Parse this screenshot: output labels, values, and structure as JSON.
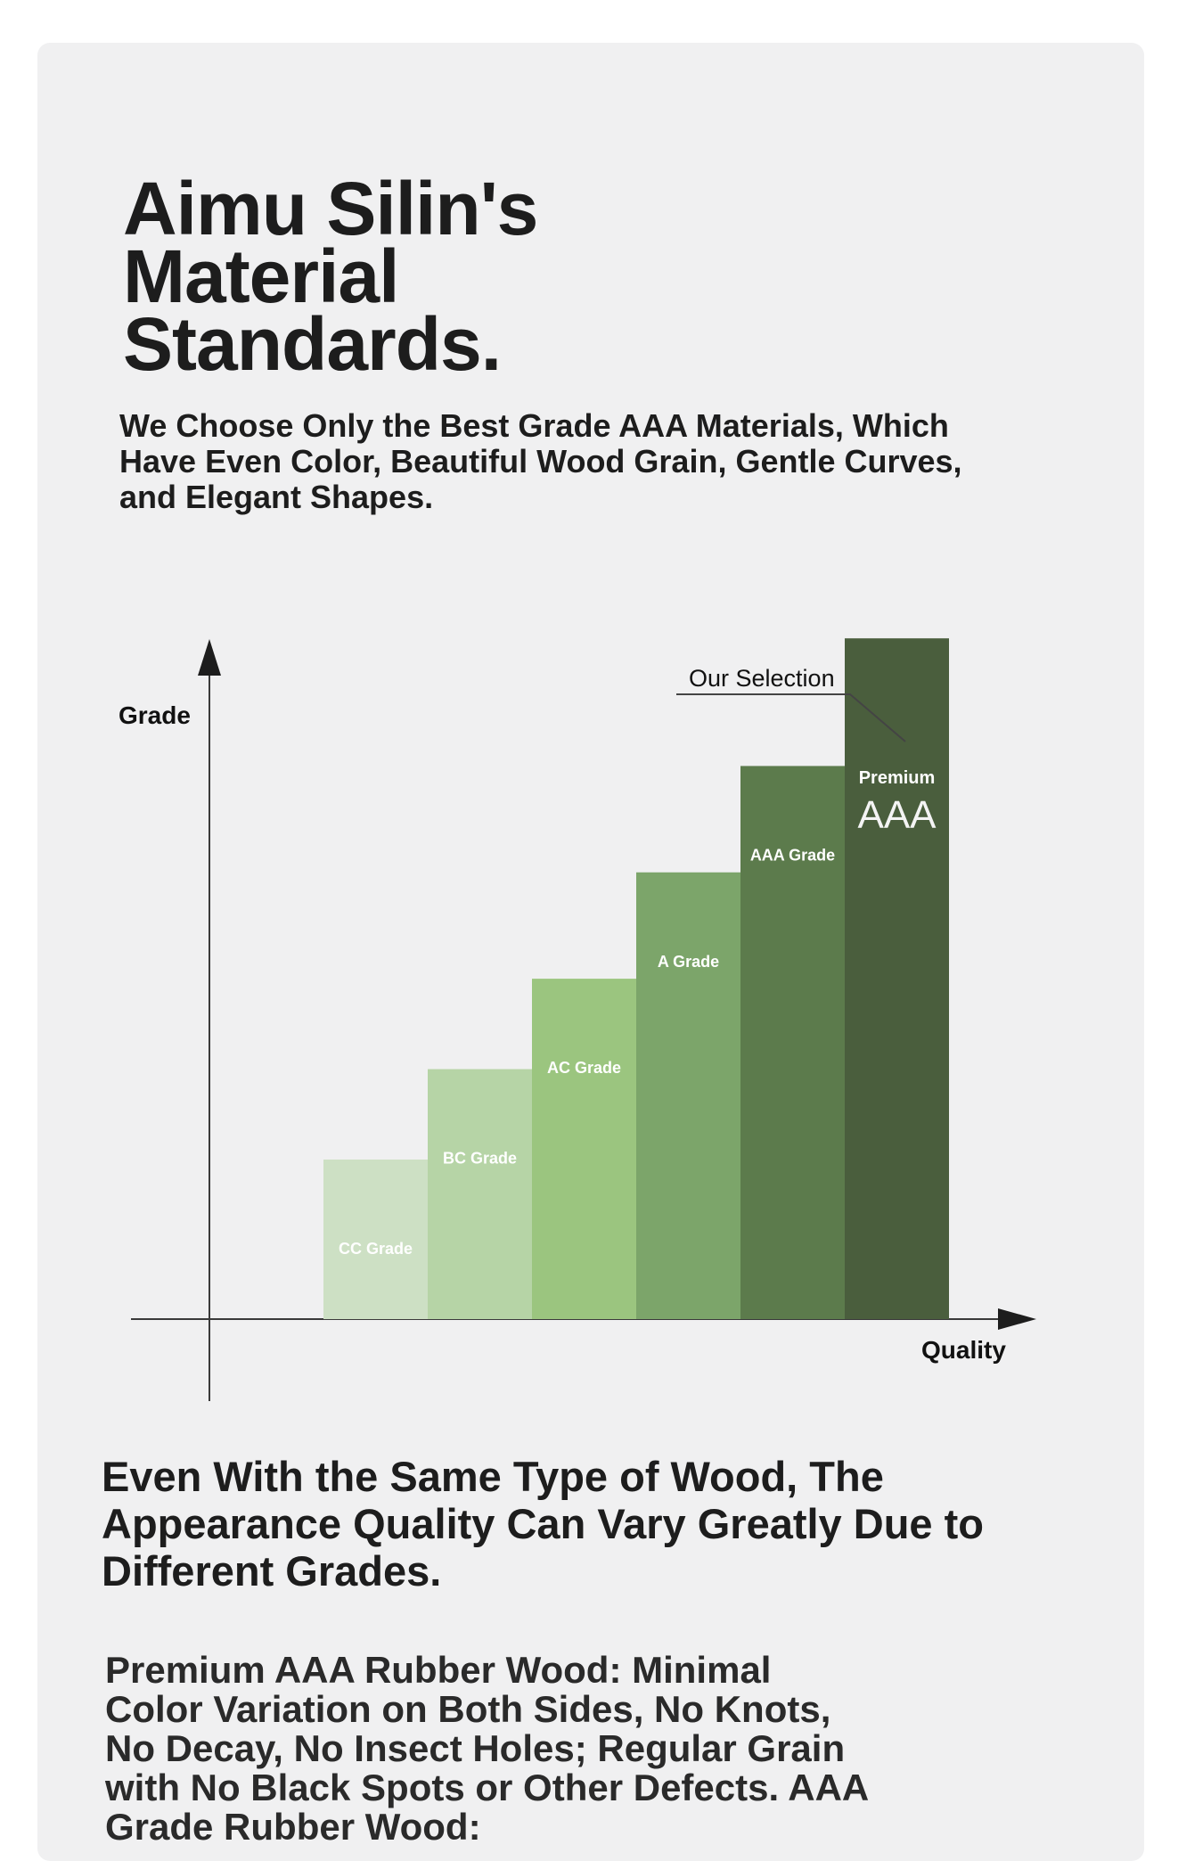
{
  "header": {
    "title": "Aimu Silin's Material Standards.",
    "subtitle": "We Choose Only the Best Grade AAA Materials, Which Have Even Color, Beautiful Wood Grain, Gentle Curves, and Elegant Shapes."
  },
  "chart_data": {
    "type": "bar",
    "ylabel": "Grade",
    "xlabel": "Quality",
    "categories": [
      "CC Grade",
      "BC Grade",
      "AC Grade",
      "A Grade",
      "AAA Grade",
      "Premium AAA"
    ],
    "values": [
      1.5,
      2.35,
      3.2,
      4.2,
      5.2,
      6.4
    ],
    "ylim": [
      0,
      7.6
    ],
    "grid": false,
    "colors": [
      "#cde0c4",
      "#b6d4a6",
      "#9bc57f",
      "#7ca56a",
      "#5c7b4c",
      "#4a5e3d"
    ],
    "premium_bar": {
      "line1": "Premium",
      "line2": "AAA"
    },
    "callout": "Our Selection"
  },
  "body": {
    "heading": "Even With the Same Type of Wood, The Appearance Quality Can Vary Greatly Due to Different Grades.",
    "paragraph": "Premium AAA Rubber Wood: Minimal Color Variation on Both Sides, No Knots, No Decay, No Insect Holes; Regular Grain with No Black Spots or Other Defects. AAA Grade Rubber Wood:"
  }
}
